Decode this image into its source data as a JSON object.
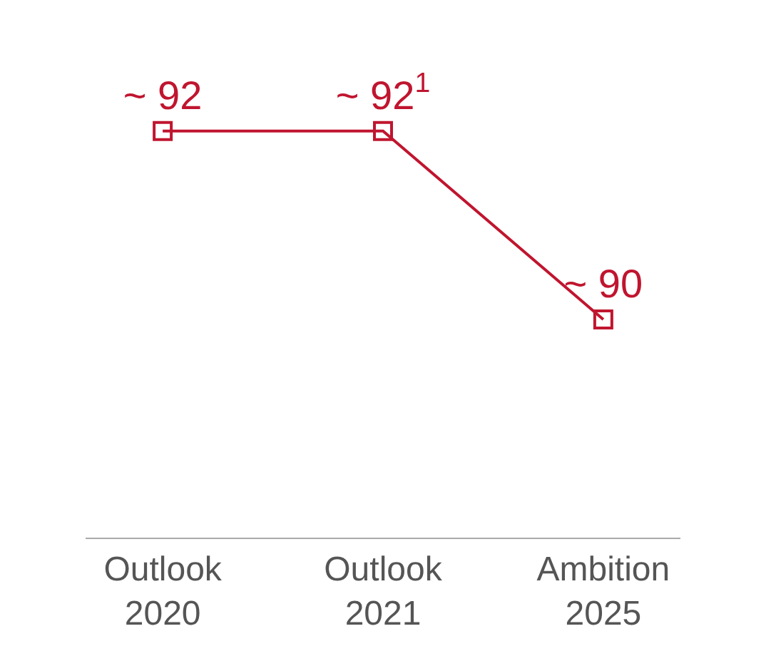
{
  "chart_data": {
    "type": "line",
    "categories": [
      "Outlook 2020",
      "Outlook 2021",
      "Ambition 2025"
    ],
    "values": [
      92,
      92,
      90
    ],
    "value_labels": [
      "~ 92",
      "~ 92$^{1}$",
      "~ 90"
    ],
    "color": "#c0152f",
    "marker": "square",
    "line_style": "solid",
    "grid": false,
    "legend": false
  }
}
